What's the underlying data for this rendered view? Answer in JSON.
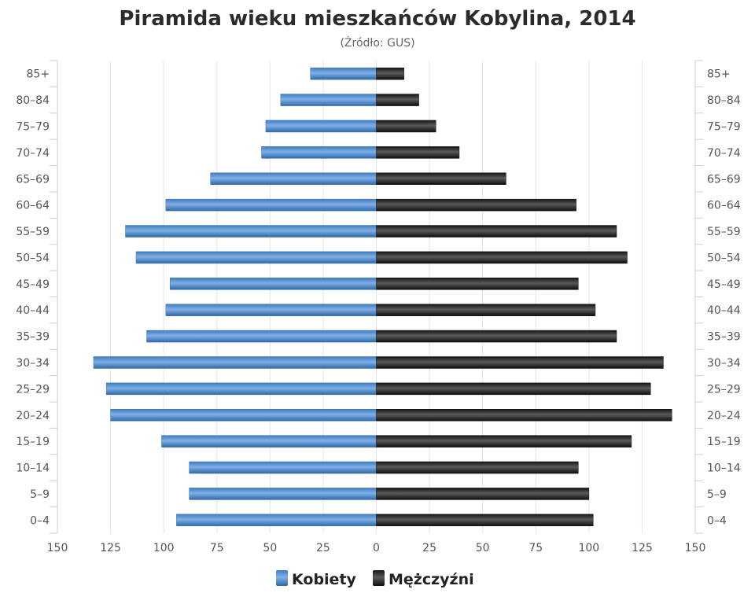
{
  "chart_data": {
    "type": "bar",
    "orientation": "horizontal-population-pyramid",
    "title": "Piramida wieku mieszkańców Kobylina, 2014",
    "subtitle": "(Źródło: GUS)",
    "categories": [
      "85+",
      "80–84",
      "75–79",
      "70–74",
      "65–69",
      "60–64",
      "55–59",
      "50–54",
      "45–49",
      "40–44",
      "35–39",
      "30–34",
      "25–29",
      "20–24",
      "15–19",
      "10–14",
      "5–9",
      "0–4"
    ],
    "series": [
      {
        "name": "Kobiety",
        "side": "left",
        "color": "#4a86c8",
        "values": [
          31,
          45,
          52,
          54,
          78,
          99,
          118,
          113,
          97,
          99,
          108,
          133,
          127,
          125,
          101,
          88,
          88,
          94
        ]
      },
      {
        "name": "Mężczyźni",
        "side": "right",
        "color": "#1e1e1e",
        "values": [
          13,
          20,
          28,
          39,
          61,
          94,
          113,
          118,
          95,
          103,
          113,
          135,
          129,
          139,
          120,
          95,
          100,
          102
        ]
      }
    ],
    "x_ticks": [
      "150",
      "125",
      "100",
      "75",
      "50",
      "25",
      "0",
      "25",
      "50",
      "75",
      "100",
      "125",
      "150"
    ],
    "xlim": [
      -150,
      150
    ],
    "grid": true,
    "legend_position": "bottom-center"
  }
}
